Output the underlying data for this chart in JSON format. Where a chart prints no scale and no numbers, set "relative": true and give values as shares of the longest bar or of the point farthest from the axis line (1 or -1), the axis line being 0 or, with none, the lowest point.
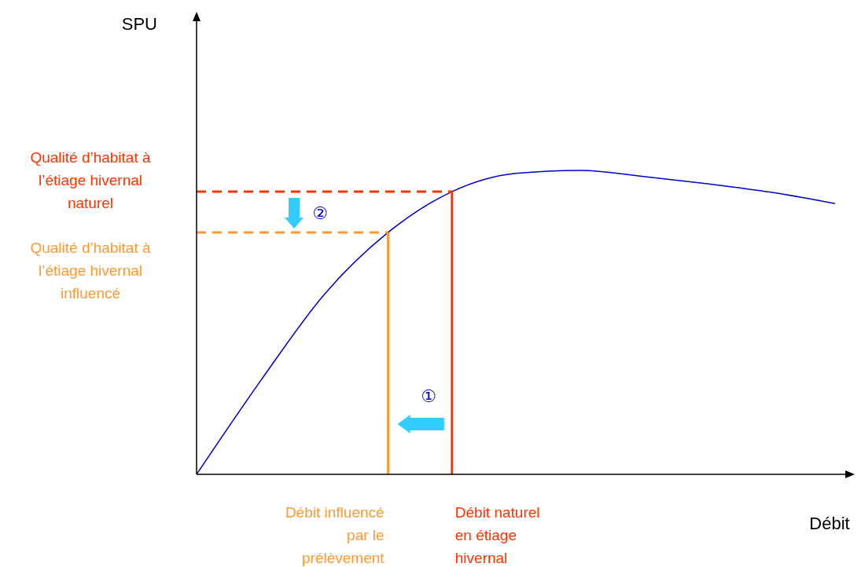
{
  "chart_data": {
    "type": "line",
    "relative": true,
    "xlabel": "Débit",
    "categories": [
      null,
      null,
      null,
      null,
      null,
      null,
      null,
      null,
      null,
      null,
      null
    ],
    "series": [
      {
        "color": "#0000cc",
        "values": [
          0,
          0.307,
          0.592,
          0.796,
          0.93,
          0.99,
          1,
          0.98,
          0.956,
          0.928,
          0.891
        ]
      }
    ],
    "ref_lines": [
      {
        "axis": "y",
        "value": 0.93,
        "label": "Qualité d’habitat à\nl’étiage hivernal\nnaturel",
        "color": "#ff3300",
        "line_style": "dashed"
      },
      {
        "axis": "y",
        "value": 0.796,
        "label": "Qualité d’habitat à\nl’étiage hivernal\ninfluencé",
        "color": "#ff9933",
        "line_style": "dashed"
      }
    ],
    "annotations": [
      "①",
      "②",
      "Débit influencé\npar le\nprélèvement",
      "Débit naturel\nen étiage\nhivernal",
      "SPU"
    ],
    "marker": "none",
    "line_style": "solid"
  }
}
